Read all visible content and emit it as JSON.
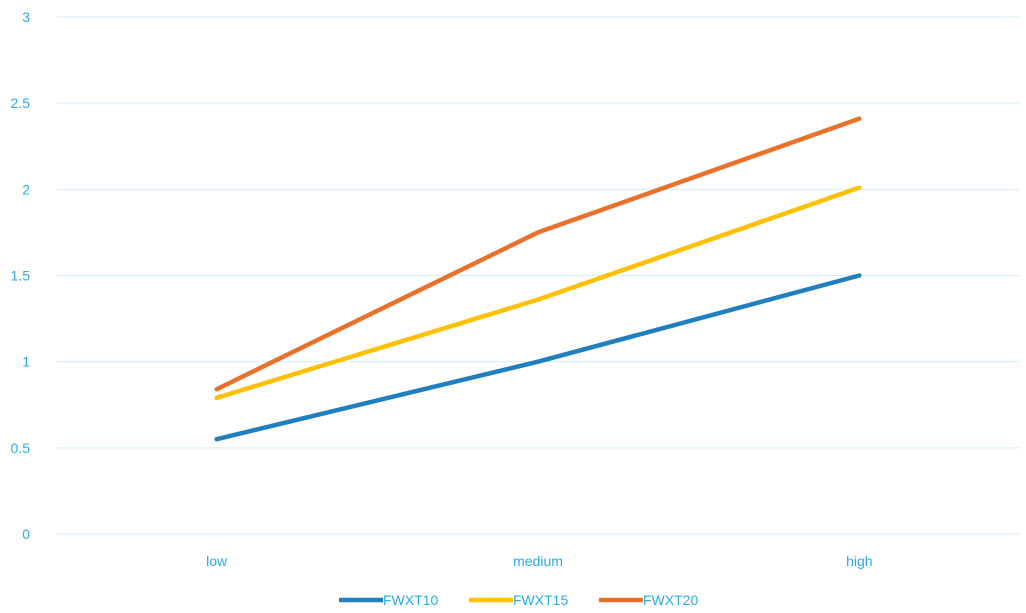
{
  "chart_data": {
    "type": "line",
    "categories": [
      "low",
      "medium",
      "high"
    ],
    "series": [
      {
        "name": "FWXT10",
        "values": [
          0.55,
          1.0,
          1.5
        ],
        "color": "#1f7fbf"
      },
      {
        "name": "FWXT15",
        "values": [
          0.79,
          1.36,
          2.01
        ],
        "color": "#ffc000"
      },
      {
        "name": "FWXT20",
        "values": [
          0.84,
          1.75,
          2.41
        ],
        "color": "#e8712c"
      }
    ],
    "ylim": [
      0,
      3
    ],
    "yticks": [
      "0",
      "0.5",
      "1",
      "1.5",
      "2",
      "2.5",
      "3"
    ],
    "grid": true,
    "legend_position": "bottom",
    "title": "",
    "xlabel": "",
    "ylabel": ""
  },
  "colors": {
    "axis_text": "#29abe2",
    "gridline": "#d6eef9"
  }
}
